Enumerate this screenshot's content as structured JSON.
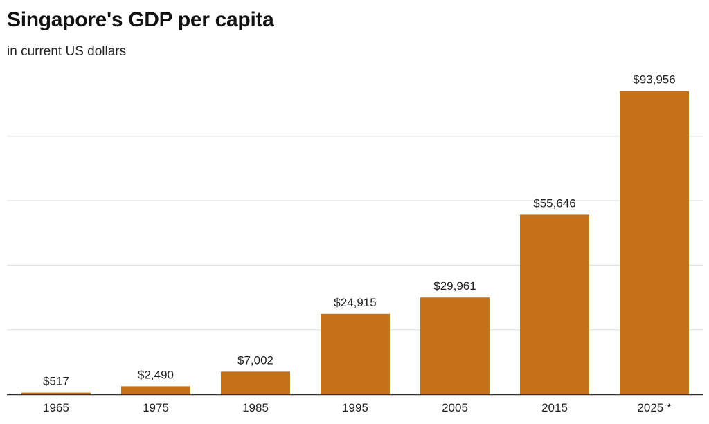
{
  "chart_data": {
    "type": "bar",
    "title": "Singapore's GDP per capita",
    "subtitle": "in current US dollars",
    "categories": [
      "1965",
      "1975",
      "1985",
      "1995",
      "2005",
      "2015",
      "2025 *"
    ],
    "values": [
      517,
      2490,
      7002,
      24915,
      29961,
      55646,
      93956
    ],
    "value_labels": [
      "$517",
      "$2,490",
      "$7,002",
      "$24,915",
      "$29,961",
      "$55,646",
      "$93,956"
    ],
    "xlabel": "",
    "ylabel": "",
    "ylim": [
      0,
      100000
    ],
    "gridlines": [
      20000,
      40000,
      60000,
      80000
    ],
    "grid": true,
    "bar_color": "#c4711a",
    "grid_color": "#e3e3e3",
    "axis_color": "#333333"
  }
}
